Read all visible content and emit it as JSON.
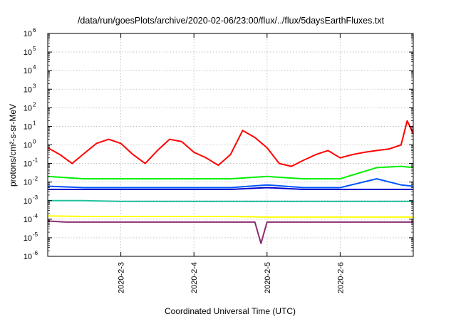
{
  "chart_data": {
    "type": "line",
    "title": "/data/run/goesPlots/archive/2020-02-06/23:00/flux/../flux/5daysEarthFluxes.txt",
    "xlabel": "Coordinated Universal Time (UTC)",
    "ylabel": "protons/cm²-s-sr-MeV",
    "y_scale": "log",
    "ylim": [
      1e-06,
      1000000.0
    ],
    "xlim": [
      "2020-02-02",
      "2020-02-07"
    ],
    "grid": true,
    "y_ticks": [
      {
        "base": "10",
        "exp": "-6",
        "value": 1e-06
      },
      {
        "base": "10",
        "exp": "-5",
        "value": 1e-05
      },
      {
        "base": "10",
        "exp": "-4",
        "value": 0.0001
      },
      {
        "base": "10",
        "exp": "-3",
        "value": 0.001
      },
      {
        "base": "10",
        "exp": "-2",
        "value": 0.01
      },
      {
        "base": "10",
        "exp": "-1",
        "value": 0.1
      },
      {
        "base": "10",
        "exp": "0",
        "value": 1
      },
      {
        "base": "10",
        "exp": "1",
        "value": 10
      },
      {
        "base": "10",
        "exp": "2",
        "value": 100
      },
      {
        "base": "10",
        "exp": "3",
        "value": 1000
      },
      {
        "base": "10",
        "exp": "4",
        "value": 10000
      },
      {
        "base": "10",
        "exp": "5",
        "value": 100000
      },
      {
        "base": "10",
        "exp": "6",
        "value": 1000000
      }
    ],
    "x_ticks": [
      {
        "label": "2020-2-3",
        "value": "2020-02-03"
      },
      {
        "label": "2020-2-4",
        "value": "2020-02-04"
      },
      {
        "label": "2020-2-5",
        "value": "2020-02-05"
      },
      {
        "label": "2020-2-6",
        "value": "2020-02-06"
      }
    ],
    "series": [
      {
        "color": "#ff0000",
        "x": [
          "2020-02-02 00:00",
          "2020-02-02 04:00",
          "2020-02-02 08:00",
          "2020-02-02 12:00",
          "2020-02-02 16:00",
          "2020-02-02 20:00",
          "2020-02-03 00:00",
          "2020-02-03 04:00",
          "2020-02-03 08:00",
          "2020-02-03 12:00",
          "2020-02-03 16:00",
          "2020-02-03 20:00",
          "2020-02-04 00:00",
          "2020-02-04 04:00",
          "2020-02-04 08:00",
          "2020-02-04 12:00",
          "2020-02-04 16:00",
          "2020-02-04 20:00",
          "2020-02-05 00:00",
          "2020-02-05 04:00",
          "2020-02-05 08:00",
          "2020-02-05 12:00",
          "2020-02-05 16:00",
          "2020-02-05 20:00",
          "2020-02-06 00:00",
          "2020-02-06 04:00",
          "2020-02-06 08:00",
          "2020-02-06 12:00",
          "2020-02-06 16:00",
          "2020-02-06 20:00",
          "2020-02-06 22:00",
          "2020-02-07 00:00"
        ],
        "y": [
          0.7,
          0.3,
          0.1,
          0.35,
          1.2,
          2.0,
          1.2,
          0.3,
          0.1,
          0.5,
          2.0,
          1.5,
          0.4,
          0.2,
          0.08,
          0.3,
          6.0,
          2.5,
          0.7,
          0.1,
          0.07,
          0.15,
          0.3,
          0.5,
          0.2,
          0.3,
          0.4,
          0.5,
          0.6,
          1.0,
          20.0,
          4.0
        ]
      },
      {
        "color": "#00ee00",
        "x": [
          "2020-02-02 00:00",
          "2020-02-02 12:00",
          "2020-02-03 00:00",
          "2020-02-03 12:00",
          "2020-02-04 00:00",
          "2020-02-04 12:00",
          "2020-02-05 00:00",
          "2020-02-05 12:00",
          "2020-02-06 00:00",
          "2020-02-06 12:00",
          "2020-02-06 20:00",
          "2020-02-07 00:00"
        ],
        "y": [
          0.02,
          0.015,
          0.015,
          0.015,
          0.015,
          0.015,
          0.02,
          0.015,
          0.015,
          0.06,
          0.07,
          0.06
        ]
      },
      {
        "color": "#0055ff",
        "x": [
          "2020-02-02 00:00",
          "2020-02-02 12:00",
          "2020-02-03 00:00",
          "2020-02-03 12:00",
          "2020-02-04 00:00",
          "2020-02-04 12:00",
          "2020-02-05 00:00",
          "2020-02-05 12:00",
          "2020-02-06 00:00",
          "2020-02-06 12:00",
          "2020-02-06 20:00",
          "2020-02-07 00:00"
        ],
        "y": [
          0.006,
          0.005,
          0.005,
          0.005,
          0.005,
          0.005,
          0.007,
          0.005,
          0.005,
          0.015,
          0.007,
          0.006
        ]
      },
      {
        "color": "#0000cc",
        "x": [
          "2020-02-02 00:00",
          "2020-02-02 12:00",
          "2020-02-03 00:00",
          "2020-02-03 12:00",
          "2020-02-04 00:00",
          "2020-02-04 12:00",
          "2020-02-05 00:00",
          "2020-02-05 12:00",
          "2020-02-06 00:00",
          "2020-02-06 12:00",
          "2020-02-06 20:00",
          "2020-02-07 00:00"
        ],
        "y": [
          0.004,
          0.004,
          0.004,
          0.004,
          0.004,
          0.004,
          0.005,
          0.004,
          0.004,
          0.004,
          0.004,
          0.004
        ]
      },
      {
        "color": "#20c0a0",
        "x": [
          "2020-02-02 00:00",
          "2020-02-02 12:00",
          "2020-02-03 00:00",
          "2020-02-03 12:00",
          "2020-02-04 00:00",
          "2020-02-04 12:00",
          "2020-02-05 00:00",
          "2020-02-05 12:00",
          "2020-02-06 00:00",
          "2020-02-06 12:00",
          "2020-02-06 20:00",
          "2020-02-07 00:00"
        ],
        "y": [
          0.001,
          0.001,
          0.0009,
          0.0009,
          0.0009,
          0.0009,
          0.0009,
          0.0009,
          0.0009,
          0.0009,
          0.0009,
          0.0009
        ]
      },
      {
        "color": "#ffff00",
        "x": [
          "2020-02-02 00:00",
          "2020-02-02 12:00",
          "2020-02-03 00:00",
          "2020-02-03 12:00",
          "2020-02-04 00:00",
          "2020-02-04 12:00",
          "2020-02-05 00:00",
          "2020-02-05 12:00",
          "2020-02-06 00:00",
          "2020-02-06 12:00",
          "2020-02-06 20:00",
          "2020-02-07 00:00"
        ],
        "y": [
          0.00015,
          0.00014,
          0.00014,
          0.00014,
          0.00014,
          0.00014,
          0.00013,
          0.00013,
          0.00013,
          0.00013,
          0.00013,
          0.00013
        ]
      },
      {
        "color": "#8b2c6e",
        "x": [
          "2020-02-02 00:00",
          "2020-02-02 06:00",
          "2020-02-02 12:00",
          "2020-02-03 00:00",
          "2020-02-03 12:00",
          "2020-02-04 00:00",
          "2020-02-04 12:00",
          "2020-02-04 20:00",
          "2020-02-04 22:00",
          "2020-02-05 00:00",
          "2020-02-05 12:00",
          "2020-02-06 00:00",
          "2020-02-06 12:00",
          "2020-02-07 00:00"
        ],
        "y": [
          8e-05,
          7e-05,
          7e-05,
          7e-05,
          7e-05,
          7e-05,
          7e-05,
          7e-05,
          5e-06,
          7e-05,
          7e-05,
          7e-05,
          7e-05,
          7e-05
        ]
      }
    ]
  }
}
